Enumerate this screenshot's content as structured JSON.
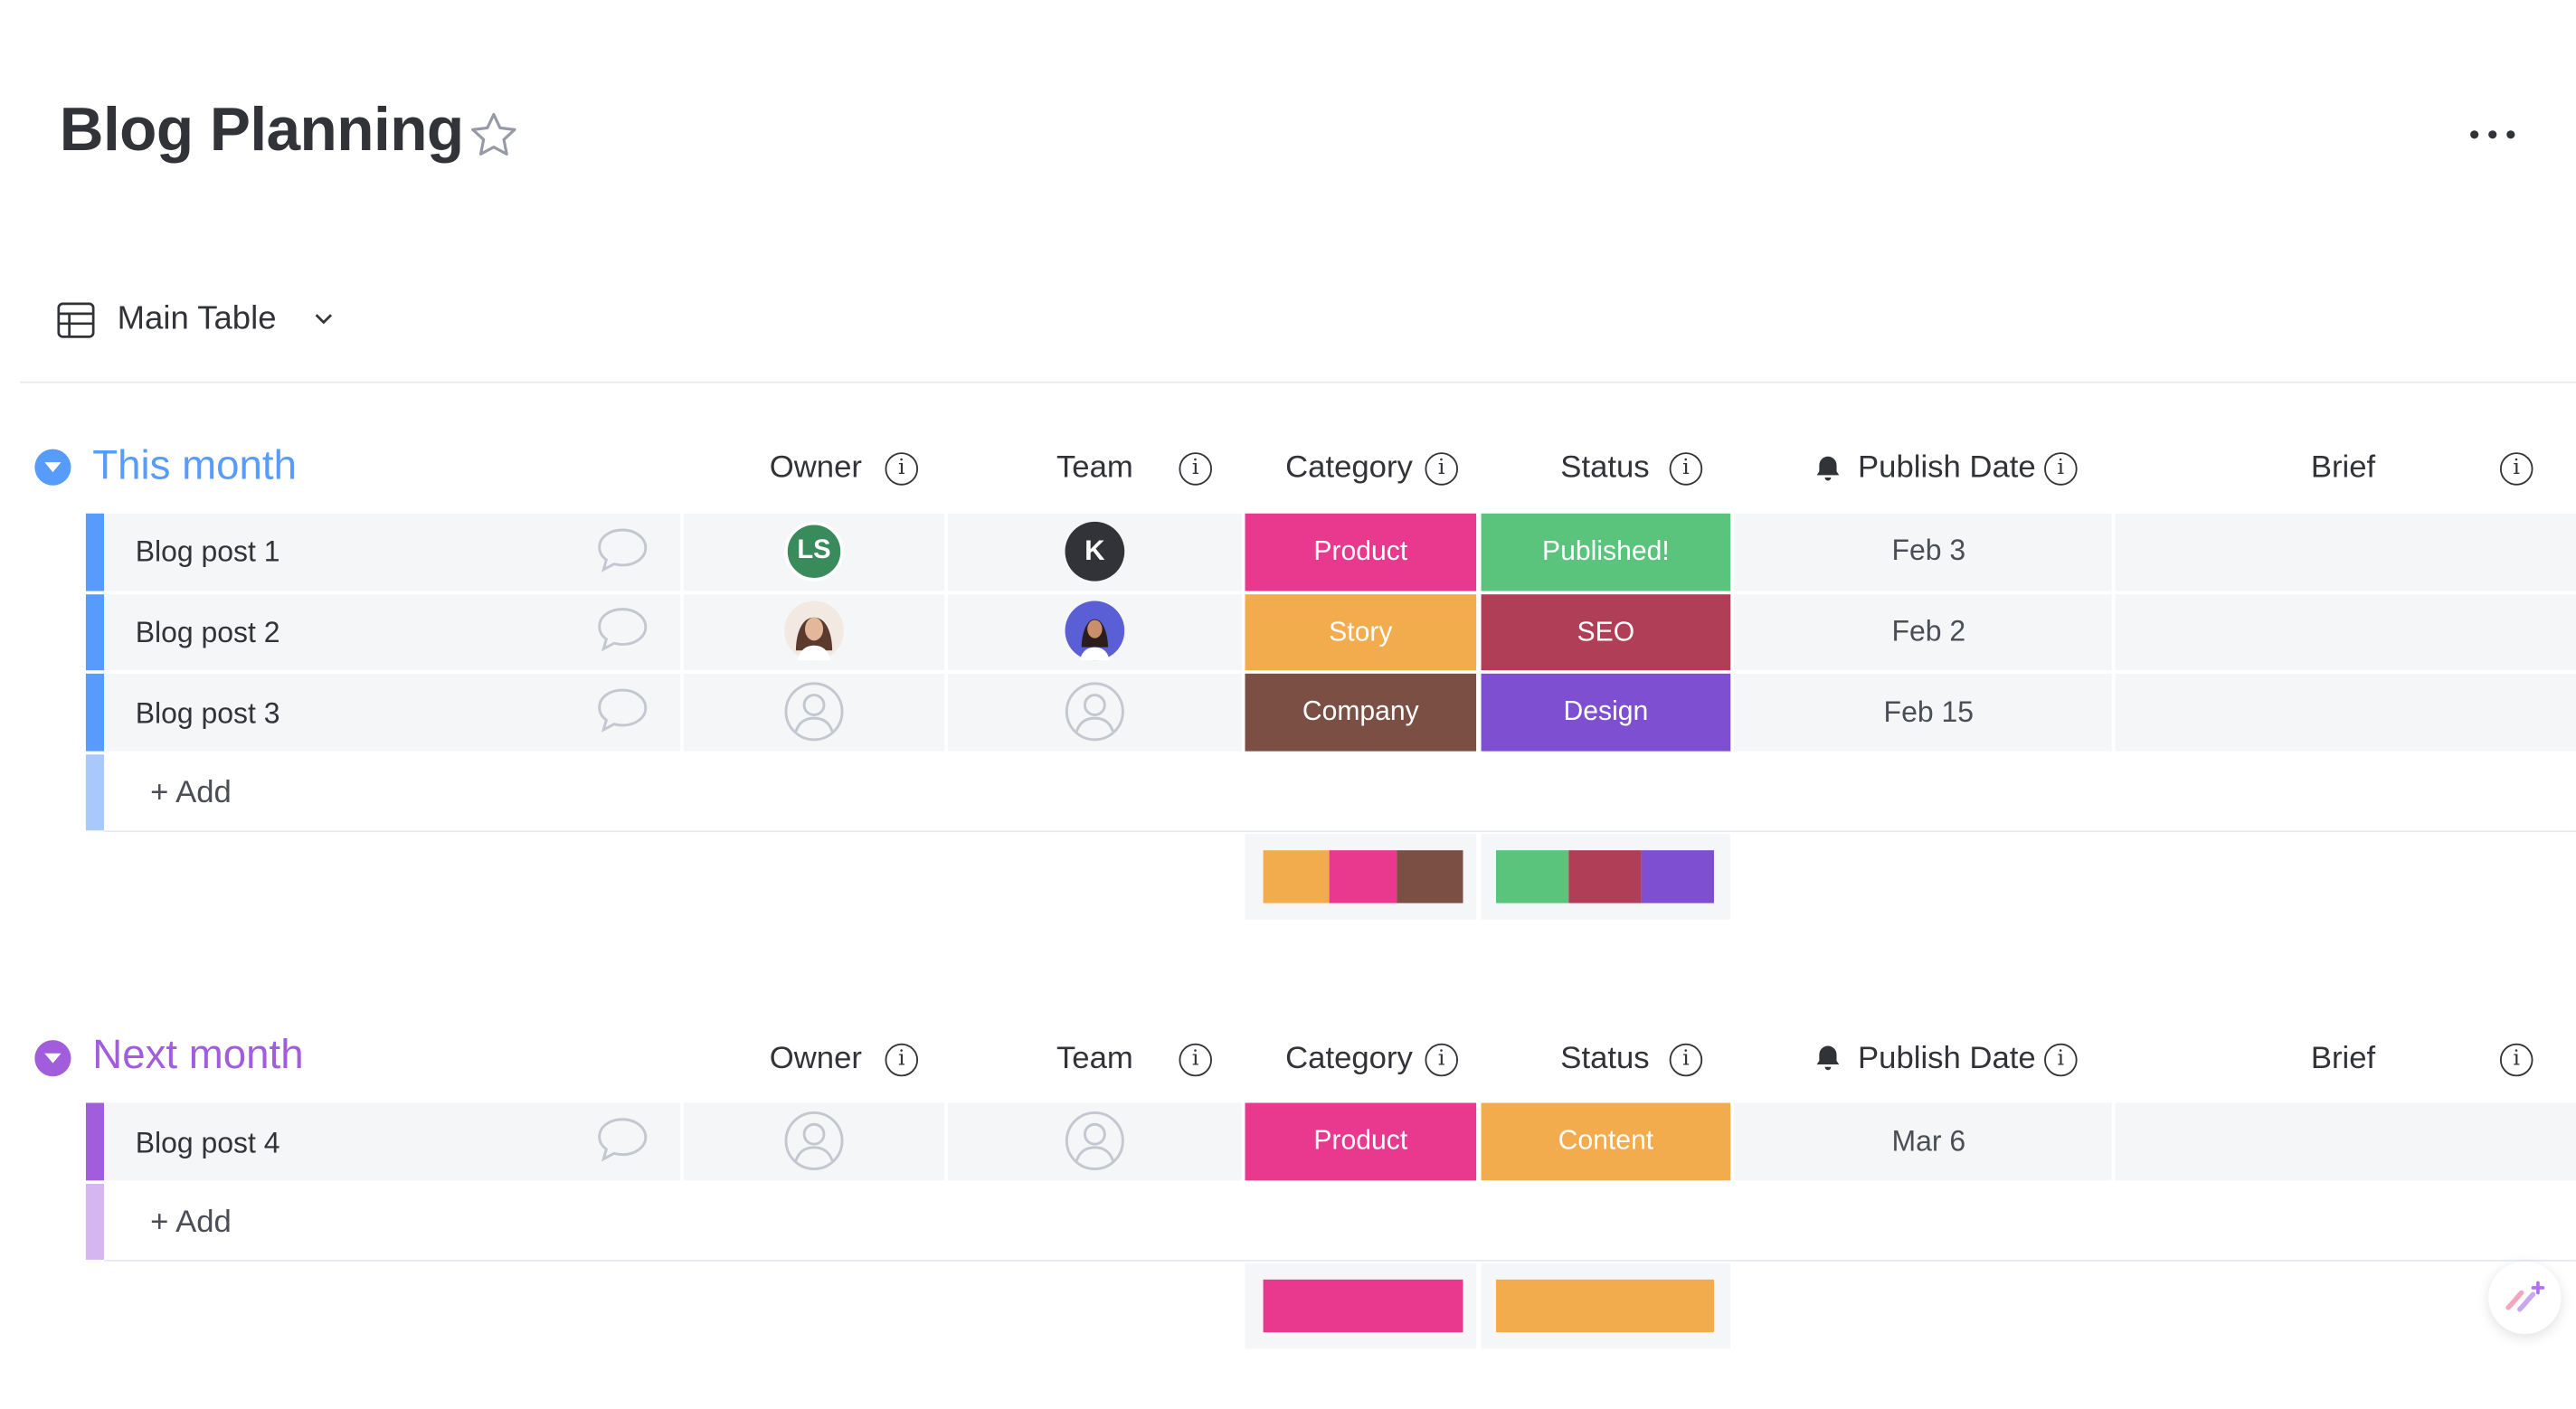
{
  "board": {
    "title": "Blog Planning",
    "view_label": "Main Table"
  },
  "groups": [
    {
      "title": "This month",
      "color": "#579bfc",
      "light_color": "#a9c8fc",
      "headers": [
        "Owner",
        "Team",
        "Category",
        "Status",
        "Publish Date",
        "Brief"
      ],
      "items": [
        {
          "name": "Blog post 1",
          "owner": "LS",
          "team": "K",
          "category": "Product",
          "status": "Published!",
          "date": "Feb 3"
        },
        {
          "name": "Blog post 2",
          "owner": "photo",
          "team": "photo",
          "category": "Story",
          "status": "SEO",
          "date": "Feb 2"
        },
        {
          "name": "Blog post 3",
          "owner": "",
          "team": "",
          "category": "Company",
          "status": "Design",
          "date": "Feb 15"
        }
      ],
      "add_label": "+ Add",
      "category_summary": [
        "#f2ac4d",
        "#e8398f",
        "#7b4f44"
      ],
      "status_summary": [
        "#5ac47d",
        "#b03e56",
        "#7e4fd1"
      ]
    },
    {
      "title": "Next month",
      "color": "#a25ddc",
      "light_color": "#d5b6f0",
      "headers": [
        "Owner",
        "Team",
        "Category",
        "Status",
        "Publish Date",
        "Brief"
      ],
      "items": [
        {
          "name": "Blog post 4",
          "owner": "",
          "team": "",
          "category": "Product",
          "status": "Content",
          "date": "Mar 6"
        }
      ],
      "add_label": "+ Add",
      "category_summary": [
        "#e8398f"
      ],
      "status_summary": [
        "#f2ac4d"
      ]
    }
  ],
  "colors": {
    "product": "#e8398f",
    "story": "#f2ac4d",
    "company": "#7b4f44",
    "published": "#5ac47d",
    "seo": "#b03e56",
    "design": "#7e4fd1",
    "content": "#f2ac4d",
    "owner_ls": "#3a8b5b",
    "team_k": "#323338"
  }
}
